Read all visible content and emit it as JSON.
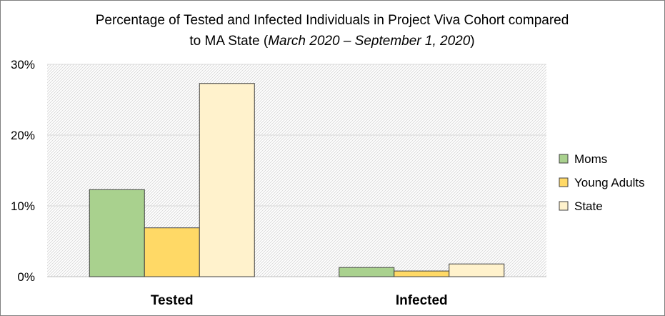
{
  "chart_data": {
    "type": "bar",
    "title_line1": "Percentage of Tested and Infected Individuals in Project Viva Cohort compared",
    "title_line2_prefix": "to MA State (",
    "title_line2_italic": "March 2020 – September 1, 2020",
    "title_line2_suffix": ")",
    "categories": [
      "Tested",
      "Infected"
    ],
    "series": [
      {
        "name": "Moms",
        "values": [
          12.3,
          1.3
        ],
        "color": "#a9d18e"
      },
      {
        "name": "Young Adults",
        "values": [
          6.9,
          0.8
        ],
        "color": "#ffd966"
      },
      {
        "name": "State",
        "values": [
          27.3,
          1.8
        ],
        "color": "#fff2cc"
      }
    ],
    "ylim": [
      0,
      30
    ],
    "y_ticks": [
      {
        "value": 0,
        "label": "0%"
      },
      {
        "value": 10,
        "label": "10%"
      },
      {
        "value": 20,
        "label": "20%"
      },
      {
        "value": 30,
        "label": "30%"
      }
    ],
    "grid": true,
    "legend_position": "right",
    "bar_outline_color": "#404040",
    "gridline_color": "#d9d9d9"
  }
}
